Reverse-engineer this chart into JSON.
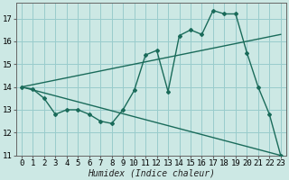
{
  "xlabel": "Humidex (Indice chaleur)",
  "bg_color": "#cce8e4",
  "grid_color": "#99cccc",
  "line_color": "#1a6b5a",
  "xlim": [
    -0.5,
    23.5
  ],
  "ylim": [
    11,
    17.7
  ],
  "yticks": [
    11,
    12,
    13,
    14,
    15,
    16,
    17
  ],
  "xticks": [
    0,
    1,
    2,
    3,
    4,
    5,
    6,
    7,
    8,
    9,
    10,
    11,
    12,
    13,
    14,
    15,
    16,
    17,
    18,
    19,
    20,
    21,
    22,
    23
  ],
  "line1_x": [
    0,
    1,
    2,
    3,
    4,
    5,
    6,
    7,
    8,
    9,
    10,
    11,
    12,
    13,
    14,
    15,
    16,
    17,
    18,
    19,
    20,
    21,
    22,
    23
  ],
  "line1_y": [
    14.0,
    13.9,
    13.5,
    12.8,
    13.0,
    13.0,
    12.8,
    12.5,
    12.4,
    13.0,
    13.85,
    15.4,
    15.6,
    13.8,
    16.25,
    16.5,
    16.3,
    17.35,
    17.2,
    17.2,
    15.5,
    14.0,
    12.8,
    11.0
  ],
  "line2_x": [
    0,
    23
  ],
  "line2_y": [
    14.0,
    16.3
  ],
  "line3_x": [
    0,
    23
  ],
  "line3_y": [
    14.0,
    11.0
  ],
  "fontsize_label": 7,
  "fontsize_tick": 6.5
}
